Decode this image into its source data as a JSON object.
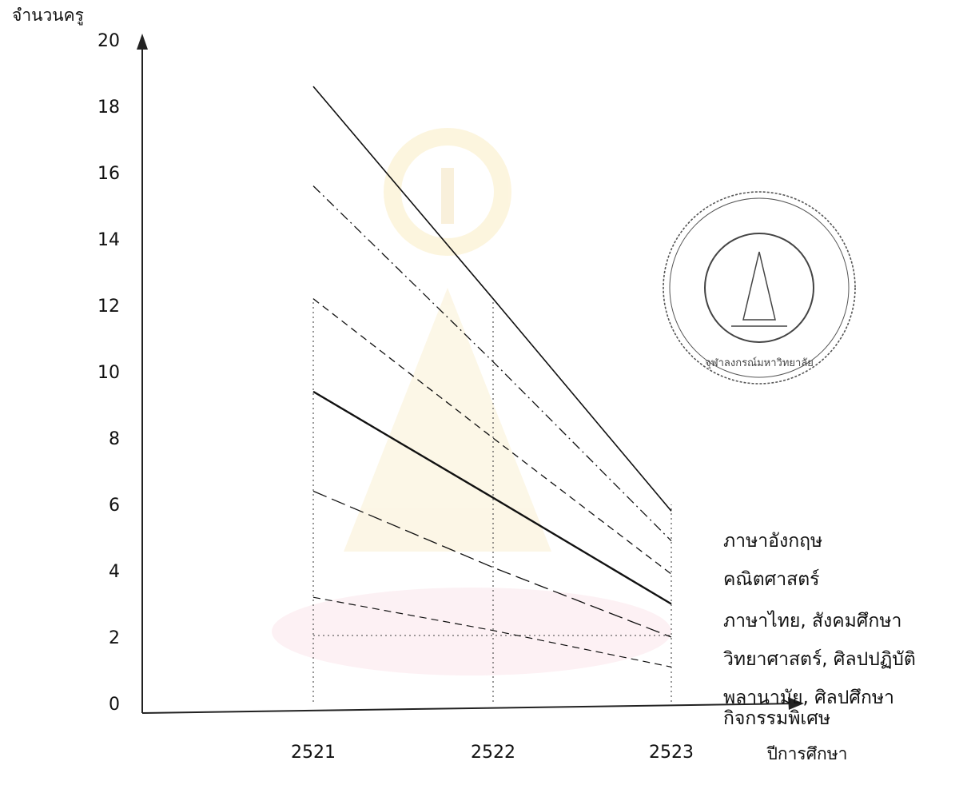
{
  "chart_data": {
    "type": "line",
    "ylabel": "จำนวนครู",
    "xlabel": "ปีการศึกษา",
    "x": [
      "2521",
      "2522",
      "2523"
    ],
    "y_ticks": [
      "0",
      "2",
      "4",
      "6",
      "8",
      "10",
      "12",
      "14",
      "16",
      "18",
      "20"
    ],
    "ylim": [
      0,
      21
    ],
    "grid": false,
    "series": [
      {
        "name": "ภาษาอังกฤษ",
        "values": [
          18.6,
          12.2,
          5.8
        ],
        "dash": "solid",
        "width": 1.6
      },
      {
        "name": "คณิตศาสตร์",
        "values": [
          15.6,
          10.3,
          4.9
        ],
        "dash": "dashdot",
        "width": 1.3
      },
      {
        "name": "ภาษาไทย, สังคมศึกษา",
        "values": [
          12.2,
          8.0,
          3.9
        ],
        "dash": "dashed",
        "width": 1.3
      },
      {
        "name": "วิทยาศาสตร์, ศิลปปฏิบัติ",
        "values": [
          9.4,
          6.2,
          3.0
        ],
        "dash": "solid",
        "width": 2.4
      },
      {
        "name": "พลานามัย, ศิลปศึกษา",
        "values": [
          6.4,
          4.1,
          2.0
        ],
        "dash": "longdash",
        "width": 1.3
      },
      {
        "name": "กิจกรรมพิเศษ",
        "values": [
          3.2,
          2.2,
          1.1
        ],
        "dash": "dashed",
        "width": 1.2
      }
    ],
    "legend_position": "right"
  },
  "seal": {
    "text": "จุฬาลงกรณ์มหาวิทยาลัย"
  }
}
